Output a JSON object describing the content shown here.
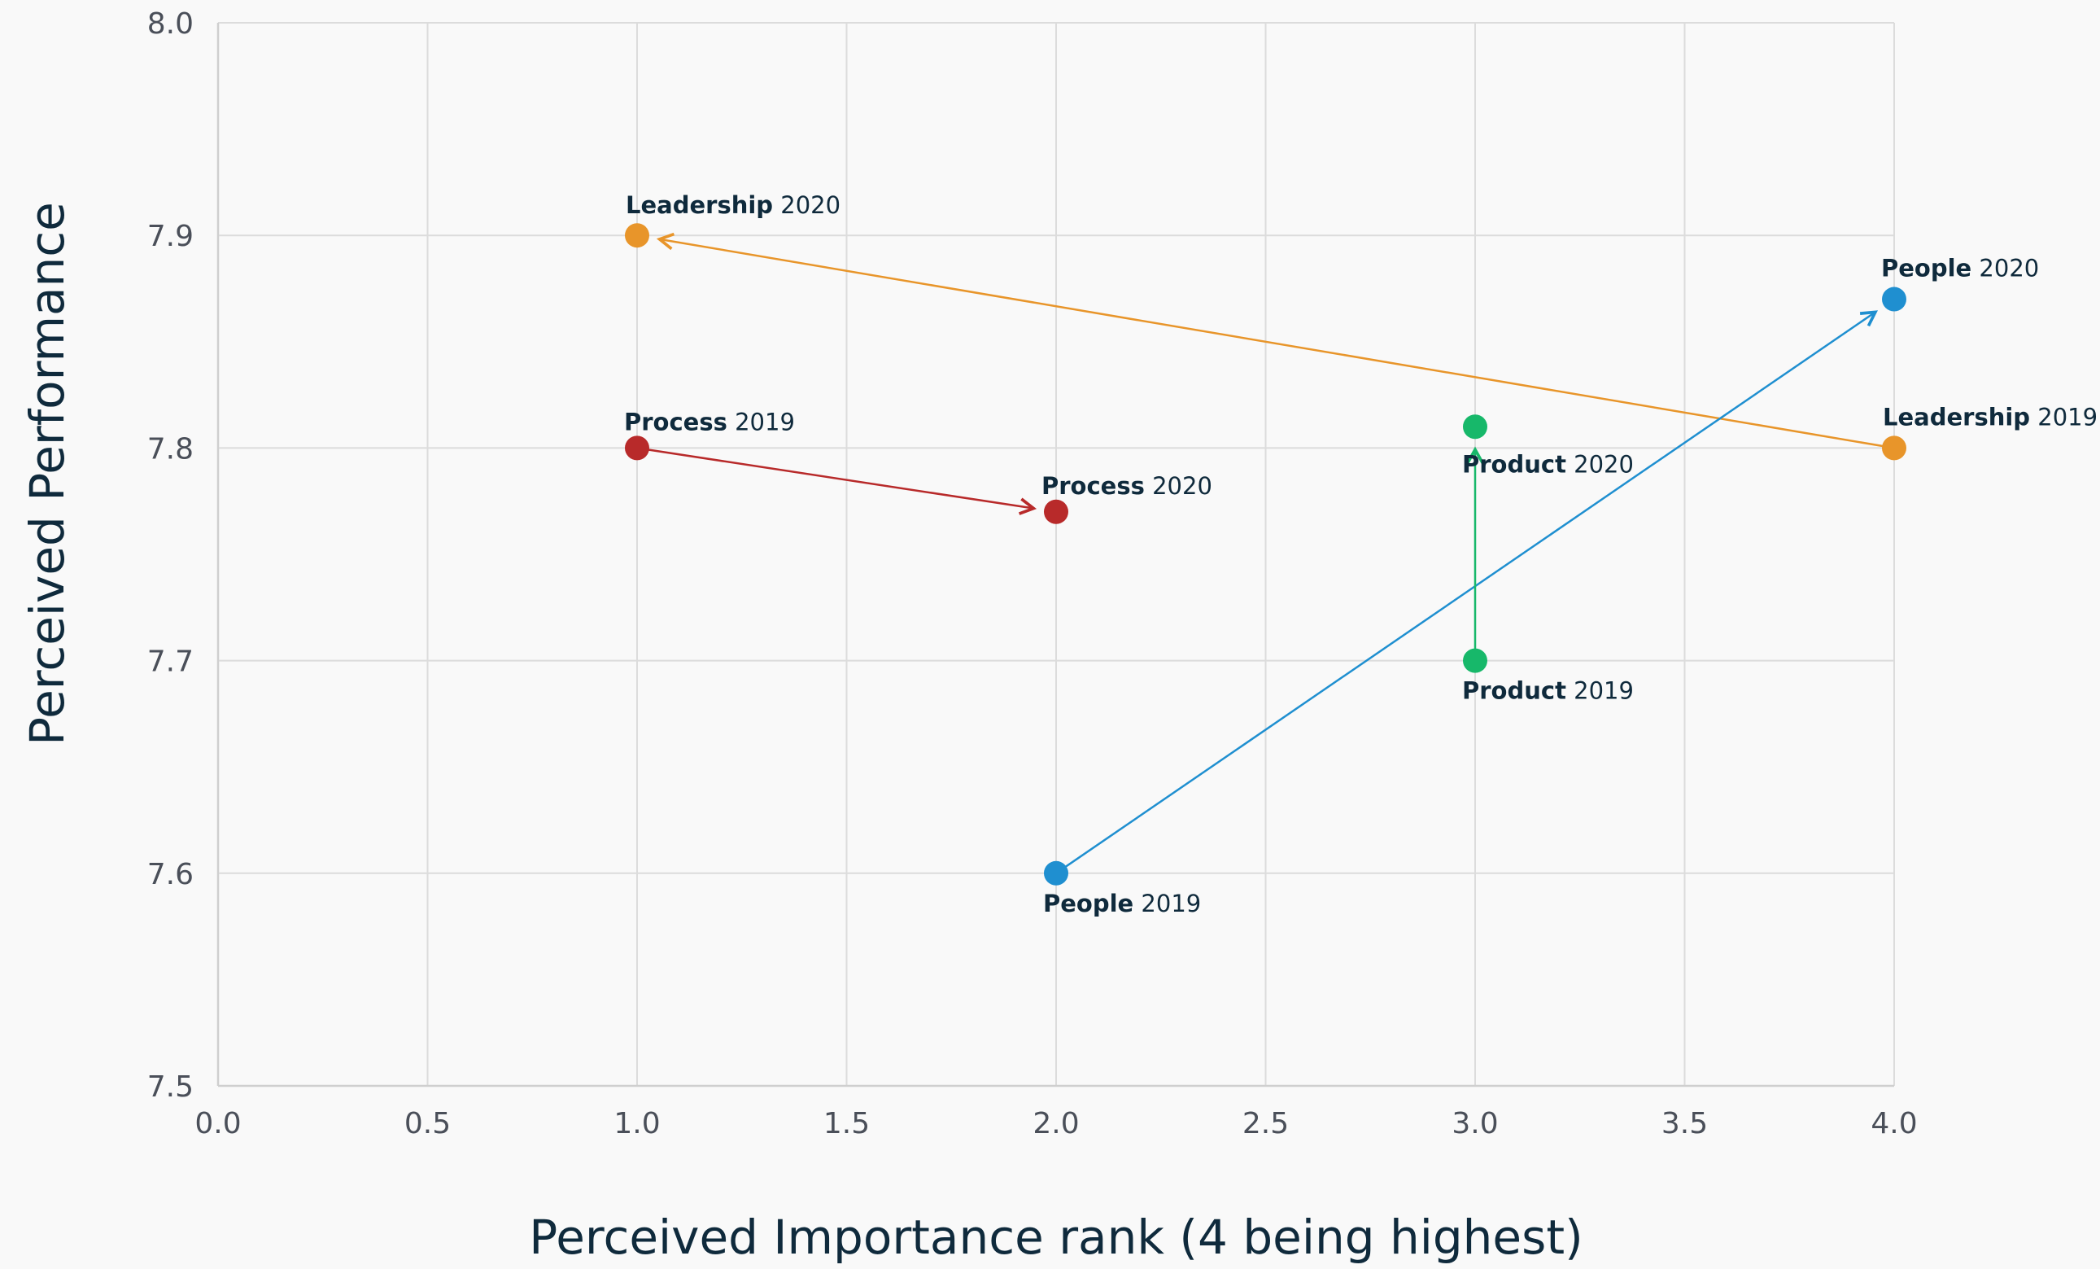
{
  "chart_data": {
    "type": "scatter",
    "title": "",
    "xlabel": "Perceived Importance rank (4 being highest)",
    "ylabel": "Perceived Performance",
    "xlim": [
      0.0,
      4.0
    ],
    "ylim": [
      7.5,
      8.0
    ],
    "grid": true,
    "x_ticks": [
      "0.0",
      "0.5",
      "1.0",
      "1.5",
      "2.0",
      "2.5",
      "3.0",
      "3.5",
      "4.0"
    ],
    "y_ticks": [
      "7.5",
      "7.6",
      "7.7",
      "7.8",
      "7.9",
      "8.0"
    ],
    "series": [
      {
        "name": "Leadership",
        "color": "#e8952a",
        "points": [
          {
            "year": "2019",
            "x": 4.0,
            "y": 7.8
          },
          {
            "year": "2020",
            "x": 1.0,
            "y": 7.9
          }
        ]
      },
      {
        "name": "People",
        "color": "#1f8fd0",
        "points": [
          {
            "year": "2019",
            "x": 2.0,
            "y": 7.6
          },
          {
            "year": "2020",
            "x": 4.0,
            "y": 7.87
          }
        ]
      },
      {
        "name": "Process",
        "color": "#b82a2a",
        "points": [
          {
            "year": "2019",
            "x": 1.0,
            "y": 7.8
          },
          {
            "year": "2020",
            "x": 2.0,
            "y": 7.77
          }
        ]
      },
      {
        "name": "Product",
        "color": "#17b86a",
        "points": [
          {
            "year": "2019",
            "x": 3.0,
            "y": 7.7
          },
          {
            "year": "2020",
            "x": 3.0,
            "y": 7.81
          }
        ]
      }
    ]
  }
}
